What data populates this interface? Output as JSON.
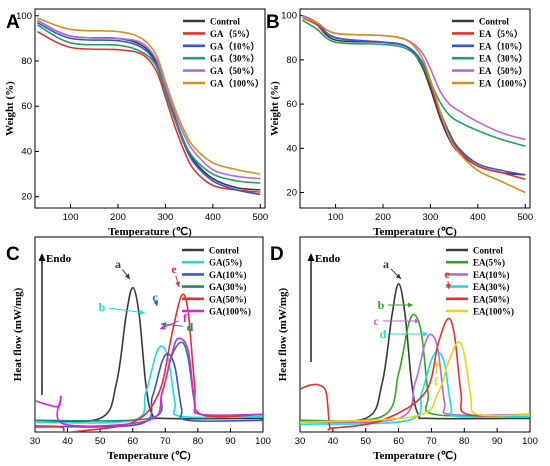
{
  "chart_data": [
    {
      "panel": "A",
      "type": "line",
      "xlabel": "Temperature (℃)",
      "ylabel": "Weight (%)",
      "xlim": [
        25,
        510
      ],
      "ylim": [
        15,
        103
      ],
      "xticks": [
        100,
        200,
        300,
        400,
        500
      ],
      "yticks": [
        20,
        40,
        60,
        80,
        100
      ],
      "legend": "top-right",
      "series": [
        {
          "name": "Control",
          "color": "#3a3a3a",
          "x": [
            30,
            100,
            200,
            250,
            280,
            300,
            320,
            340,
            360,
            400,
            450,
            500
          ],
          "y": [
            98,
            91,
            90,
            87,
            80,
            68,
            55,
            44,
            36,
            28,
            24,
            23
          ]
        },
        {
          "name": "GA（5%）",
          "color": "#e8302c",
          "x": [
            30,
            100,
            200,
            250,
            280,
            300,
            320,
            340,
            360,
            400,
            450,
            500
          ],
          "y": [
            93,
            86,
            85,
            83,
            76,
            64,
            51,
            40,
            32,
            25,
            23,
            22
          ]
        },
        {
          "name": "GA（10%）",
          "color": "#3455d8",
          "x": [
            30,
            100,
            200,
            250,
            280,
            300,
            320,
            340,
            360,
            400,
            450,
            500
          ],
          "y": [
            97,
            90,
            89,
            86,
            79,
            67,
            54,
            43,
            35,
            27,
            23,
            21
          ]
        },
        {
          "name": "GA（30%）",
          "color": "#1fa065",
          "x": [
            30,
            100,
            200,
            250,
            280,
            300,
            320,
            340,
            360,
            400,
            450,
            500
          ],
          "y": [
            96,
            88,
            87,
            84,
            78,
            66,
            54,
            44,
            37,
            30,
            27,
            26
          ]
        },
        {
          "name": "GA（50%）",
          "color": "#b868d8",
          "x": [
            30,
            100,
            200,
            250,
            280,
            300,
            320,
            340,
            360,
            400,
            450,
            500
          ],
          "y": [
            98,
            91,
            90,
            88,
            81,
            69,
            57,
            47,
            40,
            32,
            29,
            28
          ]
        },
        {
          "name": "GA（100%）",
          "color": "#d7901a",
          "x": [
            30,
            100,
            200,
            250,
            280,
            300,
            320,
            340,
            360,
            400,
            450,
            500
          ],
          "y": [
            99,
            94,
            93,
            90,
            83,
            71,
            59,
            49,
            42,
            35,
            32,
            30
          ]
        }
      ]
    },
    {
      "panel": "B",
      "type": "line",
      "xlabel": "Temperature (℃)",
      "ylabel": "Weight (%)",
      "xlim": [
        25,
        510
      ],
      "ylim": [
        13,
        103
      ],
      "xticks": [
        100,
        200,
        300,
        400,
        500
      ],
      "yticks": [
        20,
        40,
        60,
        80,
        100
      ],
      "legend": "top-right",
      "series": [
        {
          "name": "Control",
          "color": "#3a3a3a",
          "x": [
            30,
            60,
            100,
            200,
            250,
            280,
            300,
            320,
            340,
            360,
            400,
            450,
            500
          ],
          "y": [
            100,
            96,
            89,
            88,
            86,
            78,
            67,
            54,
            44,
            38,
            32,
            29,
            28
          ]
        },
        {
          "name": "EA（5%）",
          "color": "#e8302c",
          "x": [
            30,
            60,
            100,
            200,
            250,
            280,
            300,
            320,
            340,
            360,
            400,
            450,
            500
          ],
          "y": [
            99,
            96,
            90,
            88,
            86,
            79,
            69,
            56,
            46,
            39,
            32,
            29,
            26
          ]
        },
        {
          "name": "EA（10%）",
          "color": "#3455d8",
          "x": [
            30,
            60,
            100,
            200,
            250,
            280,
            300,
            320,
            340,
            360,
            400,
            450,
            500
          ],
          "y": [
            100,
            97,
            90,
            88,
            86,
            80,
            70,
            57,
            47,
            40,
            33,
            30,
            28
          ]
        },
        {
          "name": "EA（30%）",
          "color": "#1fa065",
          "x": [
            30,
            60,
            100,
            200,
            250,
            280,
            300,
            320,
            340,
            360,
            400,
            450,
            500
          ],
          "y": [
            98,
            94,
            88,
            87,
            85,
            79,
            70,
            61,
            55,
            52,
            48,
            44,
            41
          ]
        },
        {
          "name": "EA（50%）",
          "color": "#b868d8",
          "x": [
            30,
            60,
            100,
            200,
            250,
            280,
            300,
            320,
            340,
            360,
            400,
            450,
            500
          ],
          "y": [
            100,
            97,
            92,
            91,
            89,
            84,
            76,
            66,
            60,
            57,
            52,
            47,
            44
          ]
        },
        {
          "name": "EA（100%）",
          "color": "#d7901a",
          "x": [
            30,
            60,
            100,
            200,
            250,
            280,
            300,
            320,
            340,
            360,
            400,
            450,
            500
          ],
          "y": [
            99,
            97,
            92,
            91,
            89,
            82,
            71,
            57,
            45,
            38,
            30,
            25,
            20
          ]
        }
      ]
    },
    {
      "panel": "C",
      "type": "line",
      "xlabel": "Temperature (℃)",
      "ylabel": "Heat flow (mW/mg)",
      "xlim": [
        30,
        100
      ],
      "ylim": [
        0,
        10
      ],
      "xticks": [
        30,
        40,
        50,
        60,
        70,
        80,
        90,
        100
      ],
      "endo_label": "Endo",
      "legend": "top-right",
      "series": [
        {
          "name": "Control",
          "label": "a",
          "color": "#3a3a3a",
          "x": [
            30,
            50,
            55,
            58,
            60,
            62,
            64,
            66,
            70,
            100
          ],
          "y": [
            0.6,
            0.7,
            2.5,
            6.0,
            7.4,
            6.0,
            2.5,
            0.9,
            0.7,
            0.7
          ]
        },
        {
          "name": "GA(5%)",
          "label": "b",
          "color": "#17e0e0",
          "x": [
            30,
            60,
            64,
            67,
            69,
            71,
            73,
            75,
            100
          ],
          "y": [
            0.5,
            0.6,
            2.0,
            3.9,
            4.4,
            3.7,
            1.5,
            0.8,
            0.8
          ]
        },
        {
          "name": "GA(10%)",
          "label": "c",
          "color": "#3455d8",
          "x": [
            30,
            62,
            66,
            69,
            71,
            73,
            75,
            77,
            100
          ],
          "y": [
            0.3,
            0.4,
            1.8,
            3.6,
            4.0,
            3.3,
            1.2,
            0.6,
            0.6
          ]
        },
        {
          "name": "GA(30%)",
          "label": "d",
          "color": "#1f8c70",
          "x": [
            30,
            65,
            69,
            72,
            75,
            77,
            79,
            81,
            100
          ],
          "y": [
            0.6,
            0.7,
            2.0,
            3.9,
            4.6,
            3.8,
            1.5,
            0.9,
            0.9
          ]
        },
        {
          "name": "GA(50%)",
          "label": "e",
          "color": "#e8302c",
          "x": [
            30,
            38,
            39,
            41,
            60,
            68,
            72,
            75,
            77,
            79,
            81,
            100
          ],
          "y": [
            0.25,
            0.25,
            0.0,
            0.0,
            0.5,
            2.0,
            5.0,
            7.0,
            6.2,
            2.5,
            0.9,
            0.9
          ]
        },
        {
          "name": "GA(100%)",
          "label": "f",
          "color": "#e020e0",
          "x": [
            30,
            37,
            38,
            39,
            65,
            69,
            72,
            74,
            77,
            79,
            81,
            100
          ],
          "y": [
            1.6,
            1.3,
            1.8,
            0.4,
            0.6,
            2.0,
            4.0,
            4.8,
            4.2,
            1.6,
            0.9,
            0.9
          ]
        }
      ]
    },
    {
      "panel": "D",
      "type": "line",
      "xlabel": "Temperature (℃)",
      "ylabel": "Heat flow (mW/mg)",
      "xlim": [
        30,
        100
      ],
      "ylim": [
        0,
        10
      ],
      "xticks": [
        30,
        40,
        50,
        60,
        70,
        80,
        90,
        100
      ],
      "endo_label": "Endo",
      "legend": "top-right",
      "series": [
        {
          "name": "Control",
          "label": "a",
          "color": "#3a3a3a",
          "x": [
            30,
            50,
            55,
            58,
            60,
            62,
            64,
            66,
            70,
            100
          ],
          "y": [
            0.6,
            0.7,
            2.5,
            6.0,
            7.6,
            6.0,
            2.5,
            0.9,
            0.7,
            0.7
          ]
        },
        {
          "name": "EA(5%)",
          "label": "b",
          "color": "#2ea81c",
          "x": [
            30,
            55,
            60,
            63,
            65,
            67,
            69,
            71,
            100
          ],
          "y": [
            0.6,
            0.8,
            3.0,
            5.5,
            6.0,
            5.0,
            2.0,
            0.9,
            0.9
          ]
        },
        {
          "name": "EA(10%)",
          "label": "c",
          "color": "#b868d8",
          "x": [
            30,
            60,
            65,
            68,
            70,
            72,
            74,
            76,
            100
          ],
          "y": [
            0.5,
            0.7,
            2.5,
            4.5,
            5.0,
            4.2,
            1.5,
            0.9,
            0.9
          ]
        },
        {
          "name": "EA(30%)",
          "label": "d",
          "color": "#17e0e0",
          "x": [
            30,
            63,
            67,
            70,
            72,
            74,
            76,
            78,
            100
          ],
          "y": [
            0.4,
            0.6,
            2.0,
            3.7,
            4.1,
            3.5,
            1.3,
            0.8,
            0.8
          ]
        },
        {
          "name": "EA(50%)",
          "label": "e",
          "color": "#e8302c",
          "x": [
            30,
            33,
            36,
            38,
            39,
            40,
            55,
            68,
            72,
            75,
            77,
            79,
            81,
            100
          ],
          "y": [
            2.2,
            2.4,
            2.4,
            2.0,
            0.3,
            0.2,
            0.6,
            2.0,
            4.5,
            5.8,
            5.0,
            2.0,
            0.9,
            0.9
          ]
        },
        {
          "name": "EA(100%)",
          "label": "f",
          "color": "#f2d40c",
          "x": [
            30,
            65,
            72,
            75,
            78,
            80,
            82,
            84,
            100
          ],
          "y": [
            0.5,
            0.8,
            2.0,
            3.5,
            4.6,
            4.0,
            1.8,
            0.9,
            0.9
          ]
        }
      ]
    }
  ]
}
